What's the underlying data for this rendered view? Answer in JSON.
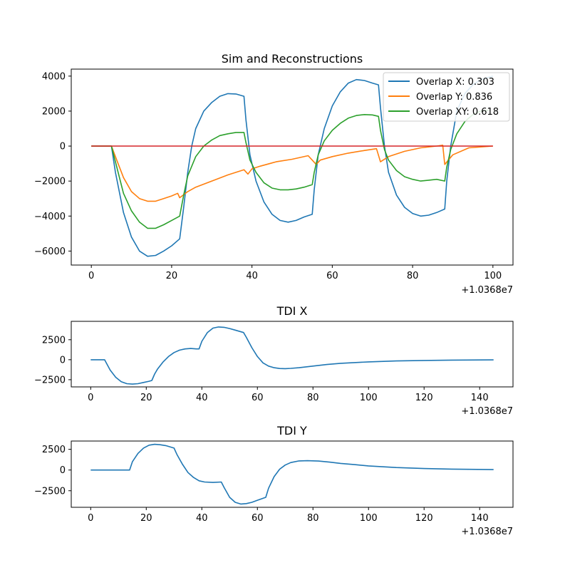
{
  "colors": {
    "c0": "#1f77b4",
    "c1": "#ff7f0e",
    "c2": "#2ca02c",
    "c3": "#d62728",
    "axes": "#000000",
    "background": "#ffffff"
  },
  "chart_data": [
    {
      "type": "line",
      "title": "Sim and Reconstructions",
      "xlabel": "",
      "ylabel": "",
      "x_offset_label": "+1.0368e7",
      "xlim": [
        -5,
        105
      ],
      "ylim": [
        -6800,
        4400
      ],
      "xticks": [
        0,
        20,
        40,
        60,
        80,
        100
      ],
      "yticks": [
        -6000,
        -4000,
        -2000,
        0,
        2000,
        4000
      ],
      "yticklabels": [
        "−6000",
        "−4000",
        "−2000",
        "0",
        "2000",
        "4000"
      ],
      "grid": false,
      "legend": "top-right",
      "series": [
        {
          "name": "Overlap X: 0.303",
          "color": "#1f77b4",
          "points": [
            [
              0,
              0
            ],
            [
              5,
              0
            ],
            [
              6,
              -1500
            ],
            [
              8,
              -3800
            ],
            [
              10,
              -5200
            ],
            [
              12,
              -6000
            ],
            [
              14,
              -6300
            ],
            [
              16,
              -6250
            ],
            [
              18,
              -6000
            ],
            [
              20,
              -5700
            ],
            [
              22,
              -5300
            ],
            [
              23,
              -3500
            ],
            [
              24,
              -1500
            ],
            [
              25,
              0
            ],
            [
              26,
              1000
            ],
            [
              28,
              2000
            ],
            [
              30,
              2500
            ],
            [
              32,
              2850
            ],
            [
              34,
              3000
            ],
            [
              36,
              2980
            ],
            [
              38,
              2850
            ],
            [
              38.5,
              1500
            ],
            [
              39.5,
              -500
            ],
            [
              41,
              -2000
            ],
            [
              43,
              -3200
            ],
            [
              45,
              -3900
            ],
            [
              47,
              -4250
            ],
            [
              49,
              -4350
            ],
            [
              51,
              -4250
            ],
            [
              53,
              -4050
            ],
            [
              55,
              -3900
            ],
            [
              55.5,
              -2500
            ],
            [
              56.5,
              -500
            ],
            [
              58,
              1000
            ],
            [
              60,
              2300
            ],
            [
              62,
              3100
            ],
            [
              64,
              3600
            ],
            [
              66,
              3800
            ],
            [
              68,
              3750
            ],
            [
              70,
              3600
            ],
            [
              71.5,
              3500
            ],
            [
              72,
              2200
            ],
            [
              73,
              0
            ],
            [
              74,
              -1500
            ],
            [
              76,
              -2800
            ],
            [
              78,
              -3500
            ],
            [
              80,
              -3850
            ],
            [
              82,
              -4000
            ],
            [
              84,
              -3950
            ],
            [
              86,
              -3800
            ],
            [
              88,
              -3600
            ],
            [
              88.5,
              -2000
            ],
            [
              89.5,
              0
            ],
            [
              91,
              2000
            ],
            [
              93,
              3000
            ],
            [
              95,
              3500
            ],
            [
              97,
              3800
            ],
            [
              100,
              4000
            ]
          ]
        },
        {
          "name": "Overlap Y: 0.836",
          "color": "#ff7f0e",
          "points": [
            [
              0,
              0
            ],
            [
              5,
              0
            ],
            [
              6,
              -600
            ],
            [
              8,
              -1800
            ],
            [
              10,
              -2600
            ],
            [
              12,
              -3000
            ],
            [
              14,
              -3150
            ],
            [
              16,
              -3150
            ],
            [
              18,
              -3000
            ],
            [
              20,
              -2850
            ],
            [
              21.5,
              -2700
            ],
            [
              22,
              -2950
            ],
            [
              24,
              -2600
            ],
            [
              26,
              -2350
            ],
            [
              30,
              -2000
            ],
            [
              34,
              -1650
            ],
            [
              38,
              -1350
            ],
            [
              39,
              -1600
            ],
            [
              40,
              -1300
            ],
            [
              42,
              -1150
            ],
            [
              46,
              -900
            ],
            [
              50,
              -750
            ],
            [
              54,
              -550
            ],
            [
              55,
              -800
            ],
            [
              56,
              -1050
            ],
            [
              57,
              -800
            ],
            [
              60,
              -600
            ],
            [
              64,
              -400
            ],
            [
              68,
              -250
            ],
            [
              71,
              -150
            ],
            [
              72,
              -900
            ],
            [
              74,
              -600
            ],
            [
              78,
              -300
            ],
            [
              82,
              -100
            ],
            [
              86,
              0
            ],
            [
              87.5,
              50
            ],
            [
              88,
              -1050
            ],
            [
              90,
              -500
            ],
            [
              94,
              -100
            ],
            [
              100,
              0
            ]
          ]
        },
        {
          "name": "Overlap XY: 0.618",
          "color": "#2ca02c",
          "points": [
            [
              0,
              0
            ],
            [
              5,
              0
            ],
            [
              6,
              -900
            ],
            [
              8,
              -2700
            ],
            [
              10,
              -3700
            ],
            [
              12,
              -4350
            ],
            [
              14,
              -4700
            ],
            [
              16,
              -4700
            ],
            [
              18,
              -4500
            ],
            [
              20,
              -4250
            ],
            [
              22,
              -4000
            ],
            [
              23,
              -2800
            ],
            [
              24,
              -1700
            ],
            [
              26,
              -600
            ],
            [
              28,
              0
            ],
            [
              30,
              350
            ],
            [
              32,
              600
            ],
            [
              34,
              700
            ],
            [
              36,
              780
            ],
            [
              38,
              780
            ],
            [
              38.5,
              200
            ],
            [
              39.5,
              -800
            ],
            [
              41,
              -1500
            ],
            [
              43,
              -2100
            ],
            [
              45,
              -2400
            ],
            [
              47,
              -2500
            ],
            [
              49,
              -2500
            ],
            [
              51,
              -2450
            ],
            [
              53,
              -2350
            ],
            [
              55,
              -2200
            ],
            [
              55.5,
              -1500
            ],
            [
              56.5,
              -500
            ],
            [
              58,
              300
            ],
            [
              60,
              900
            ],
            [
              62,
              1300
            ],
            [
              64,
              1600
            ],
            [
              66,
              1750
            ],
            [
              68,
              1800
            ],
            [
              70,
              1780
            ],
            [
              71.5,
              1700
            ],
            [
              72,
              900
            ],
            [
              73,
              -200
            ],
            [
              74,
              -800
            ],
            [
              76,
              -1400
            ],
            [
              78,
              -1750
            ],
            [
              80,
              -1900
            ],
            [
              82,
              -2000
            ],
            [
              84,
              -1950
            ],
            [
              86,
              -1900
            ],
            [
              88,
              -2000
            ],
            [
              88.5,
              -1200
            ],
            [
              89.5,
              -200
            ],
            [
              91,
              700
            ],
            [
              93,
              1400
            ],
            [
              95,
              1800
            ],
            [
              97,
              2000
            ],
            [
              99,
              2050
            ]
          ]
        },
        {
          "name": "",
          "color": "#d62728",
          "points": [
            [
              0,
              0
            ],
            [
              100,
              0
            ]
          ]
        }
      ]
    },
    {
      "type": "line",
      "title": "TDI X",
      "xlabel": "",
      "ylabel": "",
      "x_offset_label": "+1.0368e7",
      "xlim": [
        -7,
        152
      ],
      "ylim": [
        -3400,
        4800
      ],
      "xticks": [
        0,
        20,
        40,
        60,
        80,
        100,
        120,
        140
      ],
      "yticks": [
        -2500,
        0,
        2500
      ],
      "yticklabels": [
        "−2500",
        "0",
        "2500"
      ],
      "grid": false,
      "series": [
        {
          "name": "",
          "color": "#1f77b4",
          "points": [
            [
              0,
              0
            ],
            [
              5,
              0
            ],
            [
              7,
              -1300
            ],
            [
              9,
              -2200
            ],
            [
              11,
              -2750
            ],
            [
              13,
              -3000
            ],
            [
              15,
              -3050
            ],
            [
              17,
              -3000
            ],
            [
              19,
              -2850
            ],
            [
              21,
              -2700
            ],
            [
              22,
              -2600
            ],
            [
              23,
              -1800
            ],
            [
              24,
              -1200
            ],
            [
              26,
              -300
            ],
            [
              28,
              400
            ],
            [
              30,
              900
            ],
            [
              32,
              1200
            ],
            [
              34,
              1350
            ],
            [
              36,
              1400
            ],
            [
              38,
              1350
            ],
            [
              39,
              1350
            ],
            [
              40,
              2300
            ],
            [
              42,
              3400
            ],
            [
              44,
              3950
            ],
            [
              46,
              4100
            ],
            [
              48,
              4050
            ],
            [
              50,
              3900
            ],
            [
              52,
              3700
            ],
            [
              55,
              3400
            ],
            [
              56,
              2800
            ],
            [
              58,
              1500
            ],
            [
              60,
              400
            ],
            [
              62,
              -400
            ],
            [
              64,
              -800
            ],
            [
              66,
              -1000
            ],
            [
              68,
              -1100
            ],
            [
              70,
              -1120
            ],
            [
              72,
              -1080
            ],
            [
              75,
              -1000
            ],
            [
              80,
              -800
            ],
            [
              85,
              -600
            ],
            [
              90,
              -450
            ],
            [
              100,
              -270
            ],
            [
              110,
              -160
            ],
            [
              120,
              -90
            ],
            [
              130,
              -50
            ],
            [
              145,
              -20
            ]
          ]
        }
      ]
    },
    {
      "type": "line",
      "title": "TDI Y",
      "xlabel": "",
      "ylabel": "",
      "x_offset_label": "+1.0368e7",
      "xlim": [
        -7,
        152
      ],
      "ylim": [
        -4500,
        3500
      ],
      "xticks": [
        0,
        20,
        40,
        60,
        80,
        100,
        120,
        140
      ],
      "yticks": [
        -2500,
        0,
        2500
      ],
      "yticklabels": [
        "−2500",
        "0",
        "2500"
      ],
      "grid": false,
      "series": [
        {
          "name": "",
          "color": "#1f77b4",
          "points": [
            [
              0,
              0
            ],
            [
              13,
              0
            ],
            [
              14,
              0
            ],
            [
              15,
              1000
            ],
            [
              17,
              2000
            ],
            [
              19,
              2650
            ],
            [
              21,
              3000
            ],
            [
              23,
              3100
            ],
            [
              25,
              3050
            ],
            [
              27,
              2950
            ],
            [
              30,
              2650
            ],
            [
              31,
              1900
            ],
            [
              33,
              700
            ],
            [
              35,
              -300
            ],
            [
              37,
              -900
            ],
            [
              39,
              -1300
            ],
            [
              41,
              -1450
            ],
            [
              44,
              -1500
            ],
            [
              47,
              -1450
            ],
            [
              48,
              -2100
            ],
            [
              50,
              -3300
            ],
            [
              52,
              -3900
            ],
            [
              54,
              -4100
            ],
            [
              56,
              -4050
            ],
            [
              58,
              -3900
            ],
            [
              60,
              -3650
            ],
            [
              63,
              -3300
            ],
            [
              64,
              -2200
            ],
            [
              66,
              -800
            ],
            [
              68,
              100
            ],
            [
              70,
              600
            ],
            [
              72,
              900
            ],
            [
              75,
              1100
            ],
            [
              78,
              1130
            ],
            [
              82,
              1080
            ],
            [
              86,
              950
            ],
            [
              90,
              800
            ],
            [
              95,
              650
            ],
            [
              100,
              500
            ],
            [
              110,
              300
            ],
            [
              120,
              180
            ],
            [
              130,
              110
            ],
            [
              145,
              50
            ]
          ]
        }
      ]
    }
  ]
}
